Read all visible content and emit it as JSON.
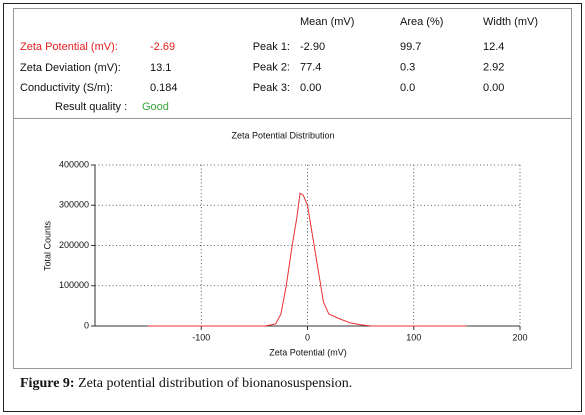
{
  "results": [
    {
      "label": "Zeta Potential (mV):",
      "value": "-2.69"
    },
    {
      "label": "Zeta Deviation (mV):",
      "value": "13.1"
    },
    {
      "label": "Conductivity (S/m):",
      "value": "0.184"
    }
  ],
  "quality": {
    "label": "Result quality :",
    "value": "Good"
  },
  "peaks": {
    "headers": [
      "Mean (mV)",
      "Area (%)",
      "Width (mV)"
    ],
    "rows": [
      [
        "Peak 1:",
        "-2.90",
        "99.7",
        "12.4"
      ],
      [
        "Peak 2:",
        "77.4",
        "0.3",
        "2.92"
      ],
      [
        "Peak 3:",
        "0.00",
        "0.0",
        "0.00"
      ]
    ]
  },
  "chart_data": {
    "type": "line",
    "title": "Zeta Potential Distribution",
    "xlabel": "Zeta Potential (mV)",
    "ylabel": "Total Counts",
    "x": [
      -150,
      -40,
      -30,
      -25,
      -20,
      -15,
      -10,
      -7,
      -4,
      0,
      5,
      10,
      15,
      20,
      30,
      40,
      50,
      60,
      100,
      150
    ],
    "values": [
      0,
      0,
      5000,
      30000,
      100000,
      190000,
      270000,
      330000,
      325000,
      300000,
      220000,
      140000,
      60000,
      30000,
      18000,
      8000,
      3000,
      0,
      0,
      0
    ],
    "color": "#e83030",
    "xlim": [
      -200,
      200
    ],
    "xticks": [
      -100,
      0,
      100,
      200
    ],
    "ylim": [
      0,
      400000
    ],
    "yticks": [
      0,
      100000,
      200000,
      300000,
      400000
    ],
    "grid": true
  },
  "caption": {
    "label": "Figure 9:",
    "text": "Zeta potential distribution of bionanosuspension."
  }
}
